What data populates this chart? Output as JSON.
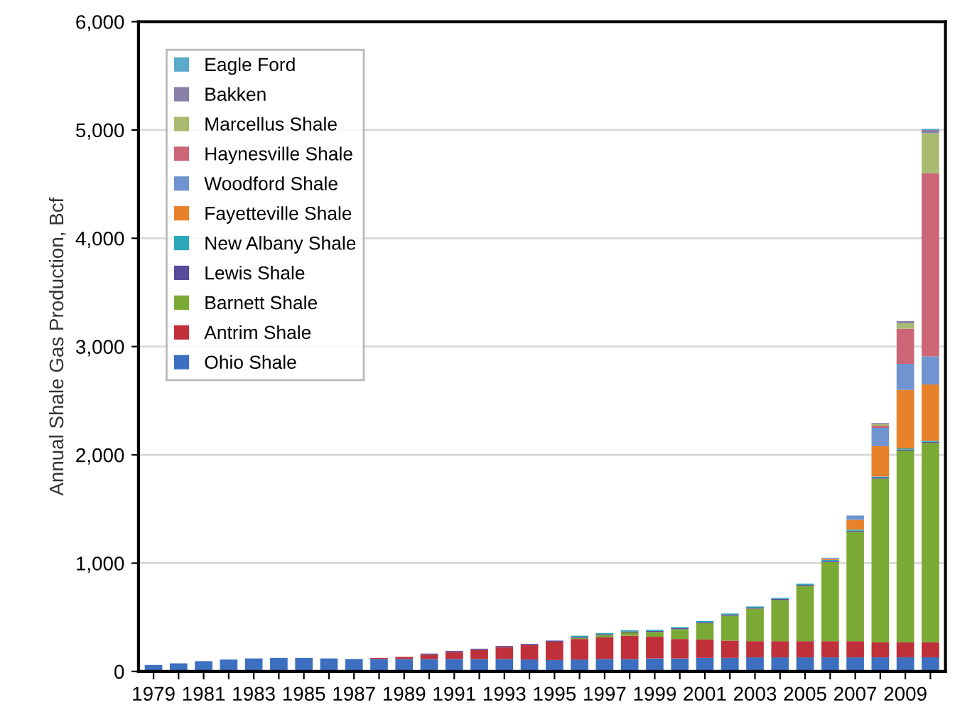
{
  "chart_data": {
    "type": "bar",
    "stacked": true,
    "ylabel": "Annual Shale Gas Production, Bcf",
    "categories": [
      "1979",
      null,
      "1981",
      null,
      "1983",
      null,
      "1985",
      null,
      "1987",
      null,
      "1989",
      null,
      "1991",
      null,
      "1993",
      null,
      "1995",
      null,
      "1997",
      null,
      "1999",
      null,
      "2001",
      null,
      "2003",
      null,
      "2005",
      null,
      "2007",
      null,
      "2009",
      null
    ],
    "series": [
      {
        "name": "Ohio Shale",
        "color": "#3c6fbf",
        "values": [
          60,
          75,
          95,
          110,
          120,
          125,
          125,
          120,
          115,
          115,
          115,
          115,
          115,
          115,
          115,
          110,
          105,
          110,
          115,
          115,
          120,
          120,
          125,
          125,
          130,
          130,
          130,
          130,
          130,
          130,
          130,
          130
        ]
      },
      {
        "name": "Antrim Shale",
        "color": "#c0303a",
        "values": [
          0,
          0,
          0,
          0,
          0,
          0,
          0,
          0,
          0,
          10,
          20,
          40,
          65,
          85,
          110,
          135,
          170,
          190,
          200,
          215,
          200,
          180,
          170,
          160,
          150,
          150,
          150,
          150,
          150,
          140,
          140,
          140
        ]
      },
      {
        "name": "Barnett Shale",
        "color": "#7aaa35",
        "values": [
          0,
          0,
          0,
          0,
          0,
          0,
          0,
          0,
          0,
          0,
          0,
          0,
          0,
          0,
          0,
          0,
          0,
          10,
          20,
          30,
          45,
          90,
          150,
          230,
          300,
          380,
          510,
          730,
          1010,
          1510,
          1770,
          1840
        ]
      },
      {
        "name": "Lewis Shale",
        "color": "#5a4a9a",
        "values": [
          0,
          0,
          0,
          0,
          0,
          0,
          0,
          0,
          0,
          0,
          0,
          10,
          10,
          10,
          10,
          10,
          10,
          10,
          10,
          10,
          10,
          10,
          10,
          10,
          10,
          10,
          10,
          10,
          10,
          10,
          10,
          10
        ]
      },
      {
        "name": "New Albany Shale",
        "color": "#2aa8b8",
        "values": [
          0,
          0,
          0,
          0,
          0,
          0,
          0,
          0,
          0,
          0,
          0,
          0,
          0,
          0,
          0,
          0,
          0,
          10,
          10,
          10,
          10,
          10,
          10,
          10,
          10,
          10,
          10,
          10,
          10,
          10,
          10,
          10
        ]
      },
      {
        "name": "Fayetteville Shale",
        "color": "#e8822a",
        "values": [
          0,
          0,
          0,
          0,
          0,
          0,
          0,
          0,
          0,
          0,
          0,
          0,
          0,
          0,
          0,
          0,
          0,
          0,
          0,
          0,
          0,
          0,
          0,
          0,
          0,
          0,
          0,
          10,
          90,
          280,
          540,
          520
        ]
      },
      {
        "name": "Woodford Shale",
        "color": "#6f94cf",
        "values": [
          0,
          0,
          0,
          0,
          0,
          0,
          0,
          0,
          0,
          0,
          0,
          0,
          0,
          0,
          0,
          0,
          0,
          0,
          0,
          0,
          0,
          0,
          0,
          0,
          0,
          0,
          0,
          10,
          40,
          170,
          240,
          260
        ]
      },
      {
        "name": "Haynesville Shale",
        "color": "#cc6677",
        "values": [
          0,
          0,
          0,
          0,
          0,
          0,
          0,
          0,
          0,
          0,
          0,
          0,
          0,
          0,
          0,
          0,
          0,
          0,
          0,
          0,
          0,
          0,
          0,
          0,
          0,
          0,
          0,
          0,
          0,
          20,
          325,
          1690
        ]
      },
      {
        "name": "Marcellus Shale",
        "color": "#a9bb70",
        "values": [
          0,
          0,
          0,
          0,
          0,
          0,
          0,
          0,
          0,
          0,
          0,
          0,
          0,
          0,
          0,
          0,
          0,
          0,
          0,
          0,
          0,
          0,
          0,
          0,
          0,
          0,
          0,
          0,
          0,
          15,
          50,
          370
        ]
      },
      {
        "name": "Bakken",
        "color": "#8a80a8",
        "values": [
          0,
          0,
          0,
          0,
          0,
          0,
          0,
          0,
          0,
          0,
          0,
          0,
          0,
          0,
          0,
          0,
          0,
          0,
          0,
          0,
          0,
          0,
          0,
          0,
          0,
          0,
          0,
          0,
          0,
          10,
          20,
          30
        ]
      },
      {
        "name": "Eagle Ford",
        "color": "#5aaac8",
        "values": [
          0,
          0,
          0,
          0,
          0,
          0,
          0,
          0,
          0,
          0,
          0,
          0,
          0,
          0,
          0,
          0,
          0,
          0,
          0,
          0,
          0,
          0,
          0,
          0,
          0,
          0,
          0,
          0,
          0,
          0,
          0,
          10
        ]
      }
    ],
    "ylim": [
      0,
      6000
    ],
    "yticks": [
      {
        "value": 0,
        "label": "0"
      },
      {
        "value": 1000,
        "label": "1,000"
      },
      {
        "value": 2000,
        "label": "2,000"
      },
      {
        "value": 3000,
        "label": "3,000"
      },
      {
        "value": 4000,
        "label": "4,000"
      },
      {
        "value": 5000,
        "label": "5,000"
      },
      {
        "value": 6000,
        "label": "6,000"
      }
    ],
    "grid": "y",
    "legend": "top left"
  }
}
